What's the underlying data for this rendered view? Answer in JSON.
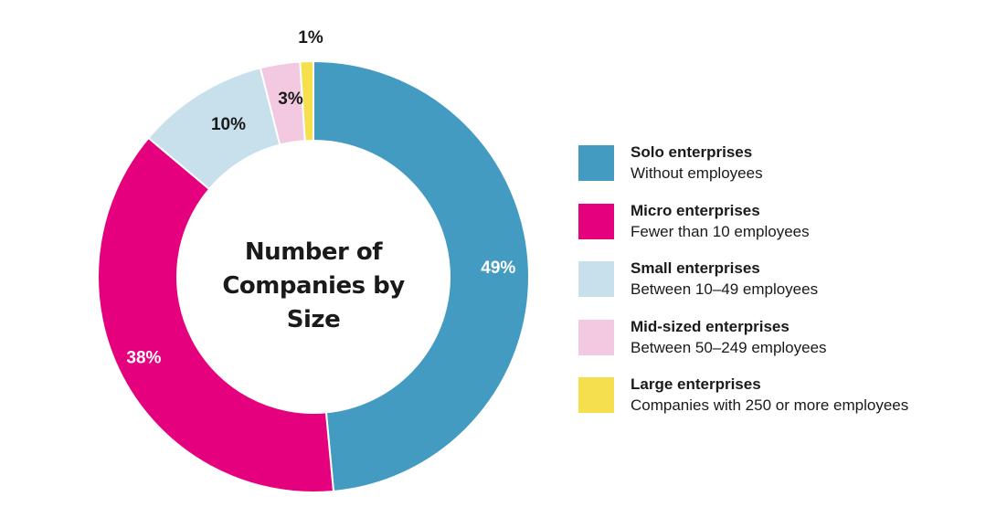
{
  "chart_data": {
    "type": "pie",
    "title": "Number of Companies by Size",
    "title_lines": [
      "Number of",
      "Companies by",
      "Size"
    ],
    "slices": [
      {
        "name": "Solo enterprises",
        "description": "Without employees",
        "value": 49,
        "label": "49%",
        "color": "#449bc1",
        "label_color": "#ffffff"
      },
      {
        "name": "Micro enterprises",
        "description": "Fewer than 10 employees",
        "value": 38,
        "label": "38%",
        "color": "#e5007e",
        "label_color": "#ffffff"
      },
      {
        "name": "Small enterprises",
        "description": "Between 10–49 employees",
        "value": 10,
        "label": "10%",
        "color": "#c7e0ec",
        "label_color": "#1a1a1a"
      },
      {
        "name": "Mid-sized enterprises",
        "description": "Between 50–249 employees",
        "value": 3,
        "label": "3%",
        "color": "#f2c9e0",
        "label_color": "#1a1a1a"
      },
      {
        "name": "Large enterprises",
        "description": "Companies with 250 or more employees",
        "value": 1,
        "label": "1%",
        "color": "#f5df4d",
        "label_color": "#1a1a1a"
      }
    ],
    "legend_position": "right",
    "donut": true
  }
}
